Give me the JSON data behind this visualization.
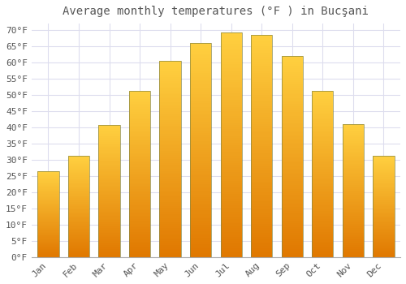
{
  "title": "Average monthly temperatures (°F ) in Bucşani",
  "months": [
    "Jan",
    "Feb",
    "Mar",
    "Apr",
    "May",
    "Jun",
    "Jul",
    "Aug",
    "Sep",
    "Oct",
    "Nov",
    "Dec"
  ],
  "values": [
    26.5,
    31.2,
    40.8,
    51.3,
    60.4,
    66.1,
    69.2,
    68.5,
    62.0,
    51.2,
    41.1,
    31.2
  ],
  "bar_color_top": "#FFD040",
  "bar_color_mid": "#FFA800",
  "bar_color_bottom": "#E07800",
  "bar_edge_color": "#888844",
  "background_color": "#FFFFFF",
  "plot_background": "#FFFFFF",
  "grid_color": "#DDDDEE",
  "text_color": "#555555",
  "ylim": [
    0,
    72
  ],
  "yticks": [
    0,
    5,
    10,
    15,
    20,
    25,
    30,
    35,
    40,
    45,
    50,
    55,
    60,
    65,
    70
  ],
  "ytick_labels": [
    "0°F",
    "5°F",
    "10°F",
    "15°F",
    "20°F",
    "25°F",
    "30°F",
    "35°F",
    "40°F",
    "45°F",
    "50°F",
    "55°F",
    "60°F",
    "65°F",
    "70°F"
  ],
  "title_fontsize": 10,
  "tick_fontsize": 8,
  "font_family": "monospace"
}
